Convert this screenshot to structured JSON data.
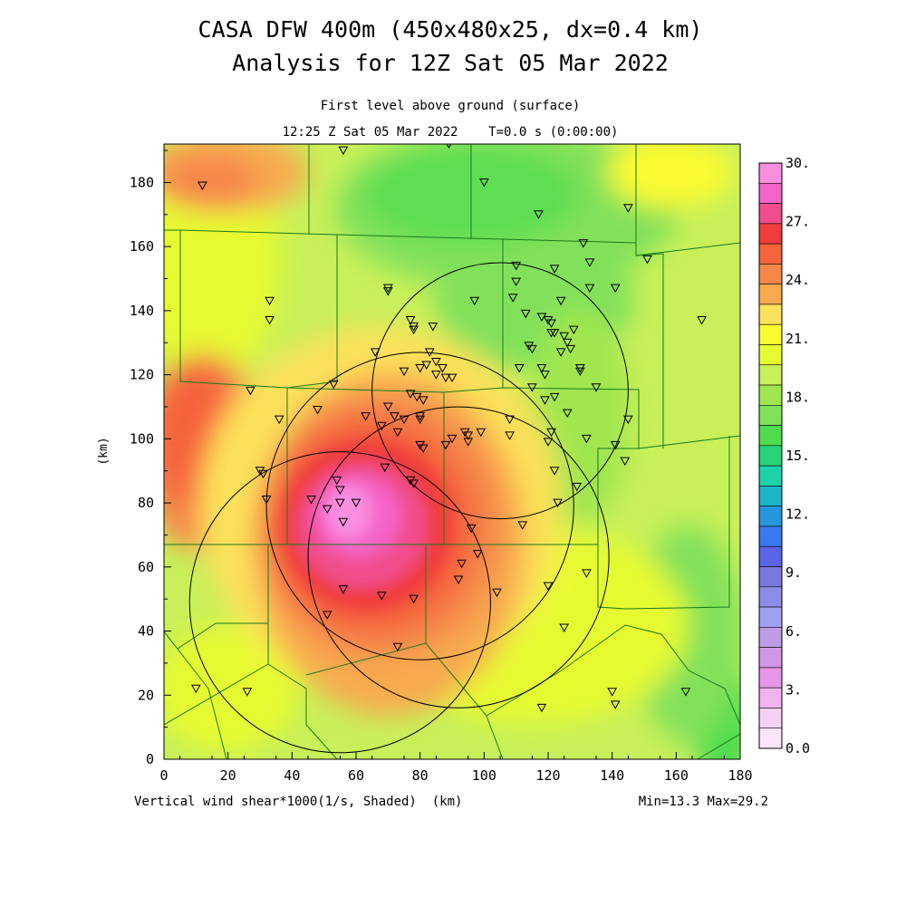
{
  "title_line1": "CASA DFW 400m (450x480x25, dx=0.4 km)",
  "title_line2": "Analysis for 12Z Sat 05 Mar 2022",
  "subtitle_line1": "First level above ground (surface)",
  "subtitle_line2": "12:25 Z Sat 05 Mar 2022    T=0.0 s (0:00:00)",
  "footer_left": "Vertical wind shear*1000(1/s, Shaded)  (km)",
  "footer_right": "Min=13.3 Max=29.2",
  "chart_data": {
    "type": "heatmap",
    "xlabel": "(km)",
    "ylabel": "(km)",
    "xlim": [
      0,
      180
    ],
    "ylim": [
      0,
      192
    ],
    "x_ticks": [
      0,
      20,
      40,
      60,
      80,
      100,
      120,
      140,
      160,
      180
    ],
    "y_ticks": [
      0,
      20,
      40,
      60,
      80,
      100,
      120,
      140,
      160,
      180
    ],
    "field": "Vertical wind shear*1000 (1/s)",
    "min": 13.3,
    "max": 29.2,
    "colorbar": {
      "labels": [
        "30.",
        "27.",
        "24.",
        "21.",
        "18.",
        "15.",
        "12.",
        "9.",
        "6.",
        "3.",
        "0.0"
      ],
      "levels_top_to_bottom": [
        "#fa8fe0",
        "#f564c8",
        "#f04e8c",
        "#f03c3c",
        "#f5643c",
        "#f5874b",
        "#f8aa50",
        "#fce15a",
        "#fafa32",
        "#e6fa32",
        "#c8f05a",
        "#a0e650",
        "#82e15a",
        "#50dc50",
        "#28d278",
        "#1ed2aa",
        "#1eb4c8",
        "#2896dc",
        "#3c78f0",
        "#5a64e6",
        "#7878dc",
        "#8c8ce6",
        "#a0a0f0",
        "#be9be6",
        "#d296e6",
        "#e696e6",
        "#f0b4f0",
        "#f5d2f5",
        "#fae6fa"
      ]
    },
    "radar_circles": [
      {
        "center_km": [
          55,
          49
        ],
        "radius_km": 47
      },
      {
        "center_km": [
          80,
          79
        ],
        "radius_km": 48
      },
      {
        "center_km": [
          92,
          63
        ],
        "radius_km": 47
      },
      {
        "center_km": [
          105,
          115
        ],
        "radius_km": 40
      }
    ],
    "station_markers_km": [
      [
        12,
        179
      ],
      [
        56,
        190
      ],
      [
        89,
        192
      ],
      [
        100,
        180
      ],
      [
        117,
        170
      ],
      [
        145,
        172
      ],
      [
        151,
        156
      ],
      [
        168,
        137
      ],
      [
        33,
        143
      ],
      [
        33,
        137
      ],
      [
        70,
        147
      ],
      [
        70,
        146
      ],
      [
        77,
        137
      ],
      [
        78,
        135
      ],
      [
        78,
        134
      ],
      [
        84,
        135
      ],
      [
        97,
        143
      ],
      [
        110,
        154
      ],
      [
        110,
        149
      ],
      [
        109,
        144
      ],
      [
        122,
        153
      ],
      [
        131,
        161
      ],
      [
        133,
        155
      ],
      [
        133,
        147
      ],
      [
        141,
        147
      ],
      [
        113,
        139
      ],
      [
        114,
        129
      ],
      [
        115,
        128
      ],
      [
        118,
        138
      ],
      [
        120,
        137
      ],
      [
        121,
        136
      ],
      [
        122,
        133
      ],
      [
        121,
        133
      ],
      [
        124,
        143
      ],
      [
        125,
        132
      ],
      [
        128,
        134
      ],
      [
        126,
        130
      ],
      [
        124,
        127
      ],
      [
        127,
        128
      ],
      [
        130,
        121
      ],
      [
        130,
        122
      ],
      [
        75,
        121
      ],
      [
        80,
        122
      ],
      [
        82,
        123
      ],
      [
        83,
        127
      ],
      [
        85,
        124
      ],
      [
        87,
        122
      ],
      [
        85,
        120
      ],
      [
        88,
        119
      ],
      [
        90,
        119
      ],
      [
        66,
        127
      ],
      [
        111,
        122
      ],
      [
        118,
        122
      ],
      [
        115,
        116
      ],
      [
        119,
        112
      ],
      [
        122,
        113
      ],
      [
        119,
        120
      ],
      [
        126,
        108
      ],
      [
        135,
        116
      ],
      [
        27,
        115
      ],
      [
        36,
        106
      ],
      [
        48,
        109
      ],
      [
        53,
        117
      ],
      [
        63,
        107
      ],
      [
        68,
        104
      ],
      [
        70,
        110
      ],
      [
        72,
        107
      ],
      [
        75,
        106
      ],
      [
        77,
        114
      ],
      [
        79,
        113
      ],
      [
        81,
        112
      ],
      [
        80,
        107
      ],
      [
        80,
        106
      ],
      [
        94,
        102
      ],
      [
        95,
        101
      ],
      [
        99,
        102
      ],
      [
        108,
        106
      ],
      [
        108,
        101
      ],
      [
        120,
        99
      ],
      [
        121,
        102
      ],
      [
        132,
        100
      ],
      [
        141,
        98
      ],
      [
        144,
        93
      ],
      [
        145,
        106
      ],
      [
        73,
        102
      ],
      [
        80,
        98
      ],
      [
        81,
        97
      ],
      [
        88,
        98
      ],
      [
        90,
        100
      ],
      [
        95,
        99
      ],
      [
        122,
        90
      ],
      [
        129,
        85
      ],
      [
        123,
        80
      ],
      [
        30,
        90
      ],
      [
        31,
        89
      ],
      [
        32,
        81
      ],
      [
        46,
        81
      ],
      [
        54,
        87
      ],
      [
        55,
        84
      ],
      [
        51,
        78
      ],
      [
        55,
        80
      ],
      [
        56,
        74
      ],
      [
        60,
        80
      ],
      [
        69,
        91
      ],
      [
        77,
        87
      ],
      [
        78,
        86
      ],
      [
        96,
        72
      ],
      [
        112,
        73
      ],
      [
        98,
        64
      ],
      [
        93,
        61
      ],
      [
        92,
        56
      ],
      [
        104,
        52
      ],
      [
        120,
        54
      ],
      [
        132,
        58
      ],
      [
        125,
        41
      ],
      [
        56,
        53
      ],
      [
        51,
        45
      ],
      [
        68,
        51
      ],
      [
        78,
        50
      ],
      [
        73,
        35
      ],
      [
        10,
        22
      ],
      [
        26,
        21
      ],
      [
        118,
        16
      ],
      [
        140,
        21
      ],
      [
        141,
        17
      ],
      [
        163,
        21
      ]
    ]
  }
}
